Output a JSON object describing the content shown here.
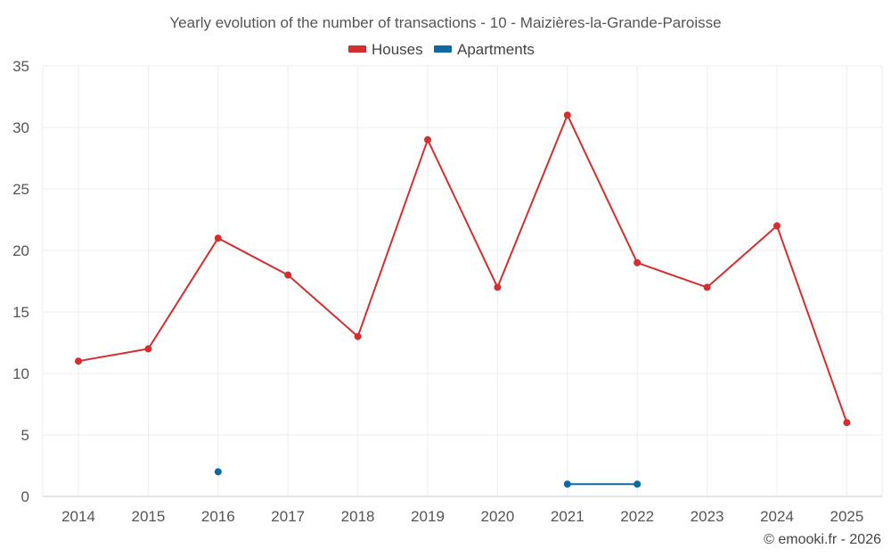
{
  "chart_data": {
    "type": "line",
    "title": "Yearly evolution of the number of transactions - 10 - Maizières-la-Grande-Paroisse",
    "categories": [
      "2014",
      "2015",
      "2016",
      "2017",
      "2018",
      "2019",
      "2020",
      "2021",
      "2022",
      "2023",
      "2024",
      "2025"
    ],
    "ylim": [
      0,
      35
    ],
    "yticks": [
      0,
      5,
      10,
      15,
      20,
      25,
      30,
      35
    ],
    "grid": true,
    "legend_position": "top-center",
    "series": [
      {
        "name": "Houses",
        "color": "#d32f2f",
        "values": [
          11,
          12,
          21,
          18,
          13,
          29,
          17,
          31,
          19,
          17,
          22,
          6
        ]
      },
      {
        "name": "Apartments",
        "color": "#0b6aa2",
        "values": [
          null,
          null,
          2,
          null,
          null,
          null,
          null,
          1,
          1,
          null,
          null,
          null
        ]
      }
    ],
    "credit": "© emooki.fr - 2026"
  }
}
